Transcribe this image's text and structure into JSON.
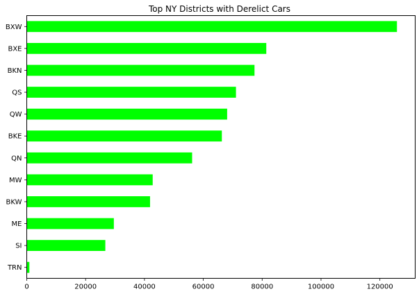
{
  "chart_data": {
    "type": "bar",
    "orientation": "horizontal",
    "title": "Top NY Districts with Derelict Cars",
    "xlabel": "",
    "ylabel": "",
    "categories": [
      "BXW",
      "BXE",
      "BKN",
      "QS",
      "QW",
      "BKE",
      "QN",
      "MW",
      "BKW",
      "ME",
      "SI",
      "TRN"
    ],
    "values": [
      125800,
      81400,
      77400,
      71100,
      68100,
      66300,
      56200,
      42800,
      41900,
      29600,
      26700,
      900
    ],
    "xlim": [
      0,
      132000
    ],
    "xticks": [
      0,
      20000,
      40000,
      60000,
      80000,
      100000,
      120000
    ],
    "xtick_labels": [
      "0",
      "20000",
      "40000",
      "60000",
      "80000",
      "100000",
      "120000"
    ],
    "bar_color": "#00ff00",
    "grid": false,
    "legend": "none"
  }
}
